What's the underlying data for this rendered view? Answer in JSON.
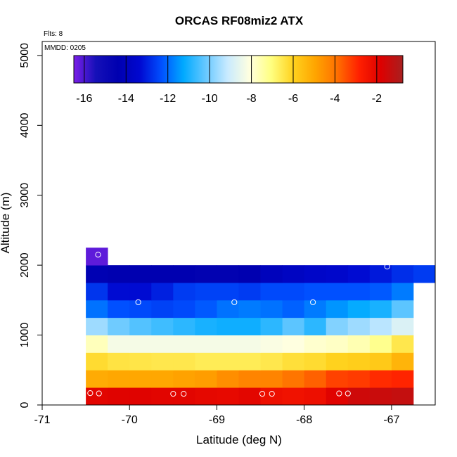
{
  "chart_data": {
    "type": "heatmap",
    "title": "ORCAS RF08miz2 ATX",
    "xlabel": "Latitude (deg N)",
    "ylabel": "Altitude (m)",
    "annotations": {
      "flights": "Flts: 8",
      "mmdd": "MMDD: 0205"
    },
    "xlim": [
      -71,
      -66.5
    ],
    "ylim": [
      0,
      5200
    ],
    "x_ticks": [
      -71,
      -70,
      -69,
      -68,
      -67
    ],
    "x_tick_labels": [
      "-71",
      "-70",
      "-69",
      "-68",
      "-67"
    ],
    "y_ticks": [
      0,
      1000,
      2000,
      3000,
      4000,
      5000
    ],
    "y_tick_labels": [
      "0",
      "1000",
      "2000",
      "3000",
      "4000",
      "5000"
    ],
    "colorbar": {
      "range": [
        -16.5,
        -0.75
      ],
      "ticks": [
        -16,
        -14,
        -12,
        -10,
        -8,
        -6,
        -4,
        -2
      ],
      "tick_labels": [
        "-16",
        "-14",
        "-12",
        "-10",
        "-8",
        "-6",
        "-4",
        "-2"
      ],
      "colors": [
        "#7b1fe8",
        "#1510b8",
        "#0000b0",
        "#0008d0",
        "#0050ff",
        "#00aaff",
        "#66c8ff",
        "#c8eaff",
        "#ffffe0",
        "#ffff80",
        "#ffd21e",
        "#ffa500",
        "#ff7000",
        "#ff2000",
        "#dd0000",
        "#a82020"
      ]
    },
    "bin_width_deg": 0.25,
    "bin_height_m": 250,
    "rows": [
      {
        "alt_bottom": 0,
        "x_start": -70.5,
        "values": [
          -1.95,
          -1.9,
          -1.9,
          -1.95,
          -1.95,
          -2.05,
          -2.1,
          -2.0,
          -2.3,
          -2.4,
          -2.3,
          -1.9,
          -1.5,
          -1.4,
          -1.3
        ]
      },
      {
        "alt_bottom": 250,
        "x_start": -70.5,
        "values": [
          -5.1,
          -5.0,
          -5.0,
          -5.0,
          -4.9,
          -4.8,
          -4.5,
          -4.3,
          -4.3,
          -4.0,
          -3.7,
          -3.3,
          -3.2,
          -3.0,
          -2.9
        ]
      },
      {
        "alt_bottom": 500,
        "x_start": -70.5,
        "values": [
          -6.2,
          -6.4,
          -6.45,
          -6.5,
          -6.5,
          -6.6,
          -6.6,
          -6.6,
          -6.5,
          -6.3,
          -6.2,
          -6.0,
          -5.9,
          -5.8,
          -5.3
        ]
      },
      {
        "alt_bottom": 750,
        "x_start": -70.5,
        "values": [
          -7.7,
          -8.3,
          -8.3,
          -8.3,
          -8.3,
          -8.3,
          -8.3,
          -8.3,
          -8.2,
          -8.1,
          -7.9,
          -7.8,
          -7.6,
          -7.2,
          -6.5
        ]
      },
      {
        "alt_bottom": 1000,
        "x_start": -70.5,
        "values": [
          -9.6,
          -10.1,
          -10.4,
          -10.6,
          -10.8,
          -11.0,
          -11.1,
          -11.1,
          -10.8,
          -10.3,
          -10.8,
          -9.9,
          -9.6,
          -9.3,
          -8.8
        ]
      },
      {
        "alt_bottom": 1250,
        "x_start": -70.5,
        "values": [
          -11.9,
          -12.3,
          -12.4,
          -12.5,
          -12.4,
          -12.2,
          -11.9,
          -11.8,
          -11.9,
          -12.1,
          -11.8,
          -11.5,
          -11.2,
          -11.0,
          -10.3
        ]
      },
      {
        "alt_bottom": 1500,
        "x_start": -70.5,
        "values": [
          -12.7,
          -13.3,
          -13.3,
          -13.0,
          -12.6,
          -12.5,
          -12.5,
          -12.6,
          -12.4,
          -12.4,
          -12.3,
          -12.3,
          -12.3,
          -12.2,
          -11.8
        ]
      },
      {
        "alt_bottom": 1750,
        "x_start": -70.5,
        "values": [
          -14.3,
          -14.4,
          -14.4,
          -14.4,
          -14.4,
          -14.5,
          -14.5,
          -14.4,
          -14.0,
          -13.8,
          -13.6,
          -13.5,
          -13.3,
          -13.1,
          -12.8,
          -12.6
        ]
      },
      {
        "alt_bottom": 2000,
        "x_start": -70.5,
        "values": [
          -16.2
        ]
      }
    ],
    "sample_points": [
      {
        "x": -70.45,
        "y": 170
      },
      {
        "x": -70.35,
        "y": 165
      },
      {
        "x": -69.5,
        "y": 160
      },
      {
        "x": -69.38,
        "y": 160
      },
      {
        "x": -68.48,
        "y": 160
      },
      {
        "x": -68.37,
        "y": 160
      },
      {
        "x": -67.6,
        "y": 165
      },
      {
        "x": -67.5,
        "y": 165
      },
      {
        "x": -69.9,
        "y": 1470
      },
      {
        "x": -68.8,
        "y": 1470
      },
      {
        "x": -67.9,
        "y": 1470
      },
      {
        "x": -70.36,
        "y": 2150
      },
      {
        "x": -67.05,
        "y": 1980
      }
    ]
  }
}
